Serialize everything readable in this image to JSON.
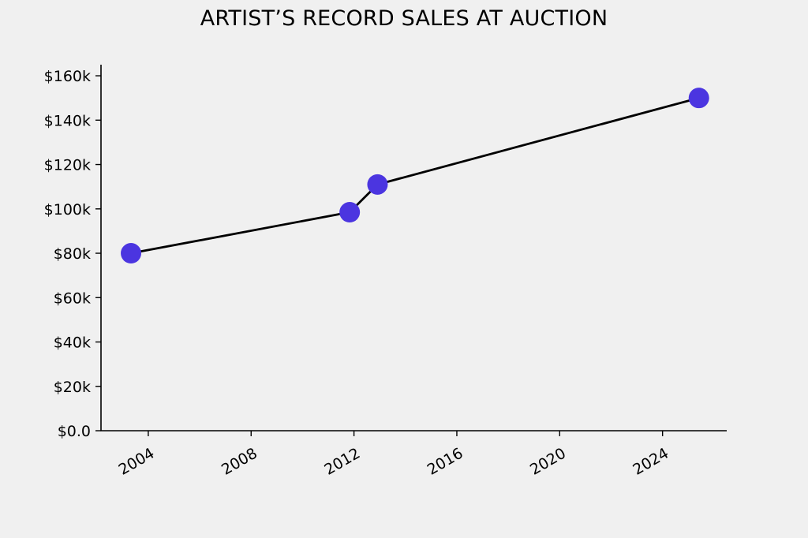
{
  "chart_data": {
    "type": "line",
    "title": "ARTIST’S RECORD SALES AT AUCTION",
    "xlabel": "",
    "ylabel": "",
    "x": [
      "2003-05-01",
      "2011-11-01",
      "2012-12-01",
      "2025-06-01"
    ],
    "series": [
      {
        "values": [
          80000,
          98500,
          111000,
          150000
        ]
      }
    ],
    "xlim": [
      "2002-03-01",
      "2026-07-01"
    ],
    "ylim": [
      0,
      165000
    ],
    "xticks": [
      "2004",
      "2008",
      "2012",
      "2016",
      "2020",
      "2024"
    ],
    "yticks": [
      {
        "value": 0,
        "label": "$0.0"
      },
      {
        "value": 20000,
        "label": "$20k"
      },
      {
        "value": 40000,
        "label": "$40k"
      },
      {
        "value": 60000,
        "label": "$60k"
      },
      {
        "value": 80000,
        "label": "$80k"
      },
      {
        "value": 100000,
        "label": "$100k"
      },
      {
        "value": 120000,
        "label": "$120k"
      },
      {
        "value": 140000,
        "label": "$140k"
      },
      {
        "value": 160000,
        "label": "$160k"
      }
    ],
    "grid": false,
    "line_color": "#000000",
    "marker_color": "#4b35e0"
  }
}
